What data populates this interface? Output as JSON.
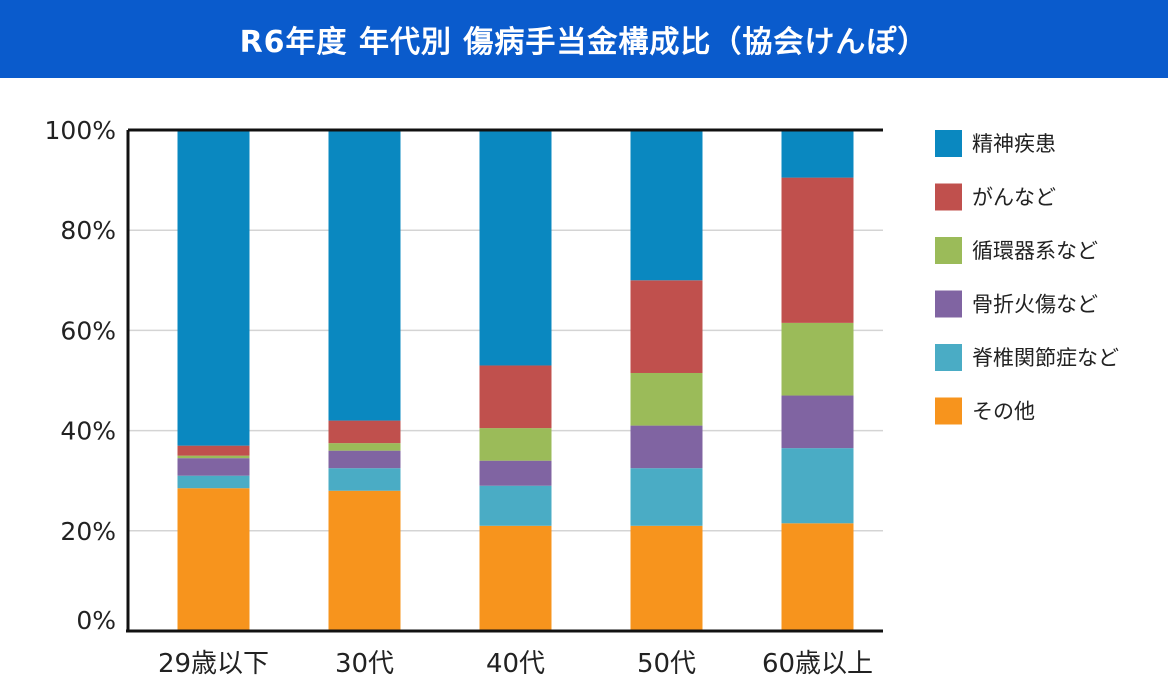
{
  "header": {
    "title": "R6年度 年代別 傷病手当金構成比（協会けんぽ）"
  },
  "chart_data": {
    "type": "bar",
    "stacked": true,
    "categories": [
      "29歳以下",
      "30代",
      "40代",
      "50代",
      "60歳以上"
    ],
    "series": [
      {
        "name": "その他",
        "color": "#f7941d",
        "values": [
          28.5,
          28.0,
          21.0,
          21.0,
          21.5
        ]
      },
      {
        "name": "脊椎関節症など",
        "color": "#4aacc5",
        "values": [
          2.5,
          4.5,
          8.0,
          11.5,
          15.0
        ]
      },
      {
        "name": "骨折火傷など",
        "color": "#8064a2",
        "values": [
          3.5,
          3.5,
          5.0,
          8.5,
          10.5
        ]
      },
      {
        "name": "循環器系など",
        "color": "#9bbb59",
        "values": [
          0.5,
          1.5,
          6.5,
          10.5,
          14.5
        ]
      },
      {
        "name": "がんなど",
        "color": "#c0504d",
        "values": [
          2.0,
          4.5,
          12.5,
          18.5,
          29.0
        ]
      },
      {
        "name": "精神疾患",
        "color": "#0a88c0",
        "values": [
          63.0,
          58.0,
          47.0,
          30.0,
          9.5
        ]
      }
    ],
    "yticks": [
      "0%",
      "20%",
      "40%",
      "60%",
      "80%",
      "100%"
    ],
    "ylim": [
      0,
      100
    ],
    "grid": true,
    "legend": "right"
  }
}
